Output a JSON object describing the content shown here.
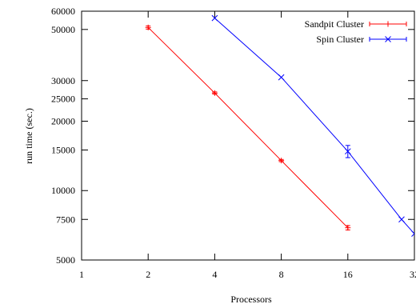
{
  "chart_data": {
    "type": "line",
    "xlabel": "Processors",
    "ylabel": "run time (sec.)",
    "x_scale": "log2",
    "y_scale": "log",
    "xlim": [
      1,
      32
    ],
    "ylim": [
      5000,
      60000
    ],
    "x_ticks": [
      1,
      2,
      4,
      8,
      16,
      32
    ],
    "x_tick_labels": [
      "1",
      "2",
      "4",
      "8",
      "16",
      "32"
    ],
    "y_ticks": [
      5000,
      7500,
      10000,
      15000,
      20000,
      25000,
      30000,
      50000,
      60000
    ],
    "y_tick_labels": [
      "5000",
      "7500",
      "10000",
      "15000",
      "20000",
      "25000",
      "30000",
      "50000",
      "60000"
    ],
    "legend_position": "top-right",
    "grid": false,
    "series": [
      {
        "name": "Sandpit Cluster",
        "color": "#ff0000",
        "marker": "plus",
        "x": [
          2,
          4,
          8,
          16
        ],
        "values": [
          51000,
          26500,
          13500,
          6900
        ],
        "err": [
          800,
          300,
          150,
          150
        ]
      },
      {
        "name": "Spin Cluster",
        "color": "#0000ff",
        "marker": "x",
        "x": [
          4,
          8,
          16,
          28,
          32
        ],
        "values": [
          56000,
          31000,
          14800,
          7500,
          6500
        ],
        "err": [
          0,
          0,
          900,
          0,
          0
        ]
      }
    ]
  }
}
